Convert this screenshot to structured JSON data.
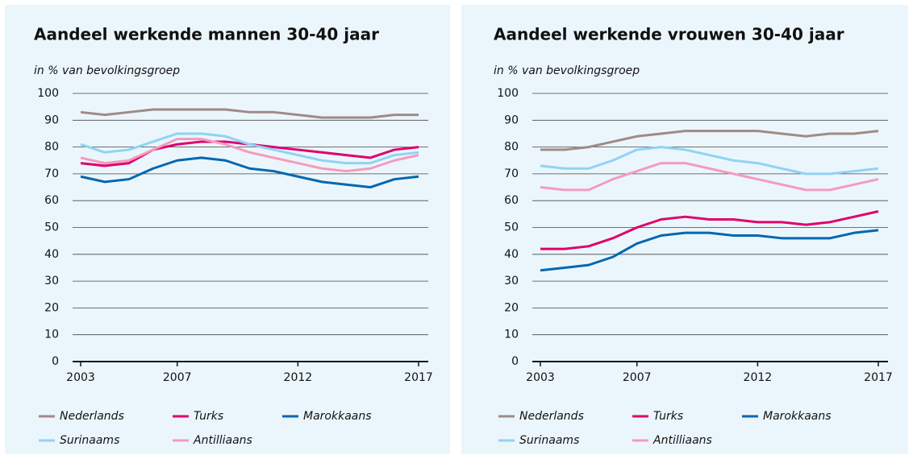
{
  "chart_data": [
    {
      "type": "line",
      "title": "Aandeel werkende mannen 30-40 jaar",
      "subtitle": "in % van bevolkingsgroep",
      "x": [
        2003,
        2004,
        2005,
        2006,
        2007,
        2008,
        2009,
        2010,
        2011,
        2012,
        2013,
        2014,
        2015,
        2016,
        2017
      ],
      "xlim": [
        2003,
        2017
      ],
      "xticks": [
        2003,
        2007,
        2012,
        2017
      ],
      "ylim": [
        0,
        100
      ],
      "yticks": [
        0,
        10,
        20,
        30,
        40,
        50,
        60,
        70,
        80,
        90,
        100
      ],
      "grid": true,
      "series": [
        {
          "name": "Nederlands",
          "color": "#9e8b85",
          "values": [
            93,
            92,
            93,
            94,
            94,
            94,
            94,
            93,
            93,
            92,
            91,
            91,
            91,
            92,
            92
          ]
        },
        {
          "name": "Turks",
          "color": "#e0006d",
          "values": [
            74,
            73,
            74,
            79,
            81,
            82,
            82,
            81,
            80,
            79,
            78,
            77,
            76,
            79,
            80
          ]
        },
        {
          "name": "Marokkaans",
          "color": "#0067b1",
          "values": [
            69,
            67,
            68,
            72,
            75,
            76,
            75,
            72,
            71,
            69,
            67,
            66,
            65,
            68,
            69
          ]
        },
        {
          "name": "Surinaams",
          "color": "#8fd3f5",
          "values": [
            81,
            78,
            79,
            82,
            85,
            85,
            84,
            81,
            79,
            77,
            75,
            74,
            74,
            77,
            78
          ]
        },
        {
          "name": "Antilliaans",
          "color": "#f49bbd",
          "values": [
            76,
            74,
            75,
            79,
            83,
            83,
            81,
            78,
            76,
            74,
            72,
            71,
            72,
            75,
            77
          ]
        }
      ]
    },
    {
      "type": "line",
      "title": "Aandeel werkende vrouwen 30-40 jaar",
      "subtitle": "in % van bevolkingsgroep",
      "x": [
        2003,
        2004,
        2005,
        2006,
        2007,
        2008,
        2009,
        2010,
        2011,
        2012,
        2013,
        2014,
        2015,
        2016,
        2017
      ],
      "xlim": [
        2003,
        2017
      ],
      "xticks": [
        2003,
        2007,
        2012,
        2017
      ],
      "ylim": [
        0,
        100
      ],
      "yticks": [
        0,
        10,
        20,
        30,
        40,
        50,
        60,
        70,
        80,
        90,
        100
      ],
      "grid": true,
      "series": [
        {
          "name": "Nederlands",
          "color": "#9e8b85",
          "values": [
            79,
            79,
            80,
            82,
            84,
            85,
            86,
            86,
            86,
            86,
            85,
            84,
            85,
            85,
            86
          ]
        },
        {
          "name": "Turks",
          "color": "#e0006d",
          "values": [
            42,
            42,
            43,
            46,
            50,
            53,
            54,
            53,
            53,
            52,
            52,
            51,
            52,
            54,
            56
          ]
        },
        {
          "name": "Marokkaans",
          "color": "#0067b1",
          "values": [
            34,
            35,
            36,
            39,
            44,
            47,
            48,
            48,
            47,
            47,
            46,
            46,
            46,
            48,
            49
          ]
        },
        {
          "name": "Surinaams",
          "color": "#8fd3f5",
          "values": [
            73,
            72,
            72,
            75,
            79,
            80,
            79,
            77,
            75,
            74,
            72,
            70,
            70,
            71,
            72
          ]
        },
        {
          "name": "Antilliaans",
          "color": "#f49bbd",
          "values": [
            65,
            64,
            64,
            68,
            71,
            74,
            74,
            72,
            70,
            68,
            66,
            64,
            64,
            66,
            68
          ]
        }
      ]
    }
  ]
}
